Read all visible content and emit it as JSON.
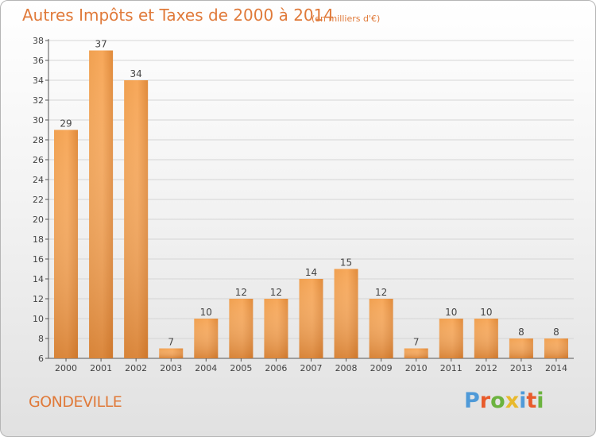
{
  "title": "Autres Impôts et Taxes de 2000 à 2014",
  "subtitle": "(en milliers d'€)",
  "commune": "GONDEVILLE",
  "brand": {
    "letters": [
      "P",
      "r",
      "o",
      "x",
      "i",
      "t",
      "i"
    ],
    "colors": [
      "#4f9ad8",
      "#e85b2b",
      "#6cb33f",
      "#e8b92c",
      "#4f9ad8",
      "#e85b2b",
      "#6cb33f"
    ]
  },
  "colors": {
    "title": "#e07a3a",
    "bar_light": "#f7a85a",
    "bar_dark": "#d87a28",
    "grid": "#d5d5d5",
    "text": "#444444"
  },
  "chart_data": {
    "type": "bar",
    "title": "Autres Impôts et Taxes de 2000 à 2014",
    "subtitle": "(en milliers d'€)",
    "categories": [
      "2000",
      "2001",
      "2002",
      "2003",
      "2004",
      "2005",
      "2006",
      "2007",
      "2008",
      "2009",
      "2010",
      "2011",
      "2012",
      "2013",
      "2014"
    ],
    "values": [
      29,
      37,
      34,
      7,
      10,
      12,
      12,
      14,
      15,
      12,
      7,
      10,
      10,
      8,
      8
    ],
    "ylim": [
      6,
      38
    ],
    "yticks": [
      6,
      8,
      10,
      12,
      14,
      16,
      18,
      20,
      22,
      24,
      26,
      28,
      30,
      32,
      34,
      36,
      38
    ],
    "grid": true,
    "data_labels": true
  }
}
